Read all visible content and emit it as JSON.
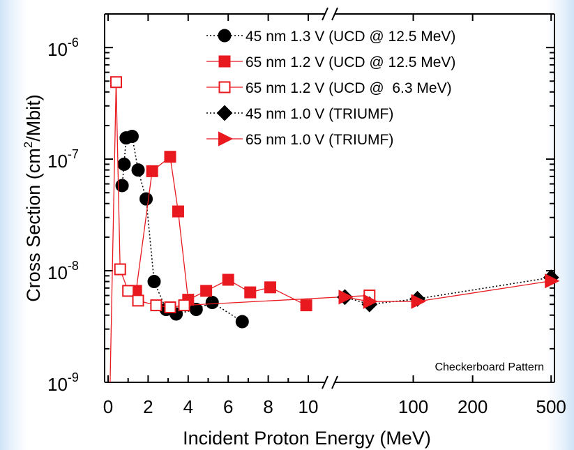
{
  "chart_data": {
    "type": "scatter",
    "title": "",
    "xlabel": "Incident Proton Energy (MeV)",
    "ylabel_main": "Cross Section (cm",
    "ylabel_sup": "2",
    "ylabel_tail": "/Mbit)",
    "yscale": "log",
    "ylim": [
      1e-09,
      2e-06
    ],
    "y_ticks": [
      {
        "value": 1e-09,
        "base": "10",
        "exp": "-9"
      },
      {
        "value": 1e-08,
        "base": "10",
        "exp": "-8"
      },
      {
        "value": 1e-07,
        "base": "10",
        "exp": "-7"
      },
      {
        "value": 1e-06,
        "base": "10",
        "exp": "-6"
      }
    ],
    "x_axis": {
      "broken": true,
      "segment1": {
        "range": [
          0,
          10.4
        ],
        "ticks": [
          0,
          2,
          4,
          6,
          8,
          10
        ],
        "labels": [
          "0",
          "2",
          "4",
          "6",
          "8",
          "10"
        ]
      },
      "segment2": {
        "range": [
          40,
          520
        ],
        "ticks": [
          100,
          200,
          500
        ],
        "labels": [
          "100",
          "200",
          "500"
        ]
      }
    },
    "legend_position": "top-right",
    "annotation": "Checkerboard Pattern",
    "series": [
      {
        "name": "45 nm 1.3 V (UCD @ 12.5 MeV)",
        "marker": "circle",
        "filled": true,
        "color": "#000000",
        "line": "dotted",
        "points": [
          [
            0.7,
            5.8e-08
          ],
          [
            0.8,
            9e-08
          ],
          [
            0.9,
            1.55e-07
          ],
          [
            1.2,
            1.6e-07
          ],
          [
            1.5,
            8e-08
          ],
          [
            1.9,
            4.4e-08
          ],
          [
            2.3,
            8e-09
          ],
          [
            2.9,
            4.5e-09
          ],
          [
            3.4,
            4.1e-09
          ],
          [
            4.4,
            4.5e-09
          ],
          [
            5.2,
            5.2e-09
          ],
          [
            6.7,
            3.5e-09
          ]
        ]
      },
      {
        "name": "65 nm 1.2 V (UCD @ 12.5 MeV)",
        "marker": "square",
        "filled": true,
        "color": "#e8191f",
        "line": "solid",
        "points": [
          [
            1.4,
            6.6e-09
          ],
          [
            2.2,
            7.8e-08
          ],
          [
            3.1,
            1.05e-07
          ],
          [
            3.5,
            3.4e-08
          ],
          [
            4.0,
            5.5e-09
          ],
          [
            4.9,
            6.6e-09
          ],
          [
            6.0,
            8.3e-09
          ],
          [
            7.1,
            6.4e-09
          ],
          [
            8.1,
            7.1e-09
          ],
          [
            9.9,
            4.9e-09
          ]
        ]
      },
      {
        "name": "65 nm 1.2 V (UCD @  6.3 MeV)",
        "marker": "square",
        "filled": false,
        "color": "#e8191f",
        "line": "solid",
        "points": [
          [
            0.1,
            1e-09
          ],
          [
            0.4,
            4.9e-07
          ],
          [
            0.6,
            1.03e-08
          ],
          [
            1.0,
            6.6e-09
          ],
          [
            1.5,
            5.4e-09
          ],
          [
            2.4,
            4.9e-09
          ],
          [
            3.1,
            4.7e-09
          ],
          [
            3.8,
            4.9e-09
          ],
          [
            60,
            6e-09
          ]
        ]
      },
      {
        "name": "45 nm 1.0 V (TRIUMF)",
        "marker": "diamond",
        "filled": true,
        "color": "#000000",
        "line": "dotted",
        "points": [
          [
            45,
            5.8e-09
          ],
          [
            60,
            5e-09
          ],
          [
            105,
            5.6e-09
          ],
          [
            500,
            8.7e-09
          ]
        ]
      },
      {
        "name": "65 nm 1.0 V (TRIUMF)",
        "marker": "triangle-right",
        "filled": true,
        "color": "#e8191f",
        "line": "solid",
        "points": [
          [
            45,
            5.8e-09
          ],
          [
            60,
            5.3e-09
          ],
          [
            105,
            5.3e-09
          ],
          [
            500,
            8.1e-09
          ]
        ]
      }
    ]
  }
}
